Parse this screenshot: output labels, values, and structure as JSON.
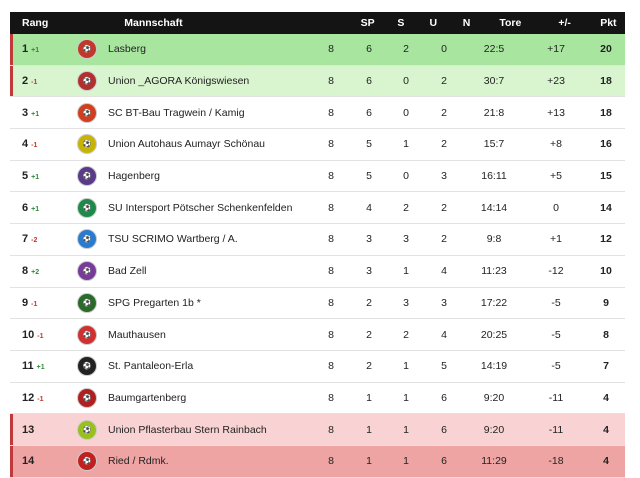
{
  "header": {
    "rang": "Rang",
    "mannschaft": "Mannschaft",
    "sp": "SP",
    "s": "S",
    "u": "U",
    "n": "N",
    "tore": "Tore",
    "diff": "+/-",
    "pkt": "Pkt"
  },
  "rows": [
    {
      "rank": "1",
      "delta": "+1",
      "team": "Lasberg",
      "sp": "8",
      "s": "6",
      "u": "2",
      "n": "0",
      "tore": "22:5",
      "diff": "+17",
      "pkt": "20",
      "logo_color": "#c0392b"
    },
    {
      "rank": "2",
      "delta": "-1",
      "team": "Union _AGORA Königswiesen",
      "sp": "8",
      "s": "6",
      "u": "0",
      "n": "2",
      "tore": "30:7",
      "diff": "+23",
      "pkt": "18",
      "logo_color": "#b03030"
    },
    {
      "rank": "3",
      "delta": "+1",
      "team": "SC BT-Bau Tragwein / Kamig",
      "sp": "8",
      "s": "6",
      "u": "0",
      "n": "2",
      "tore": "21:8",
      "diff": "+13",
      "pkt": "18",
      "logo_color": "#d04020"
    },
    {
      "rank": "4",
      "delta": "-1",
      "team": "Union Autohaus Aumayr Schönau",
      "sp": "8",
      "s": "5",
      "u": "1",
      "n": "2",
      "tore": "15:7",
      "diff": "+8",
      "pkt": "16",
      "logo_color": "#c8b400"
    },
    {
      "rank": "5",
      "delta": "+1",
      "team": "Hagenberg",
      "sp": "8",
      "s": "5",
      "u": "0",
      "n": "3",
      "tore": "16:11",
      "diff": "+5",
      "pkt": "15",
      "logo_color": "#5b3a8a"
    },
    {
      "rank": "6",
      "delta": "+1",
      "team": "SU Intersport Pötscher Schenkenfelden",
      "sp": "8",
      "s": "4",
      "u": "2",
      "n": "2",
      "tore": "14:14",
      "diff": "0",
      "pkt": "14",
      "logo_color": "#1e8a4a"
    },
    {
      "rank": "7",
      "delta": "-2",
      "team": "TSU SCRIMO Wartberg / A.",
      "sp": "8",
      "s": "3",
      "u": "3",
      "n": "2",
      "tore": "9:8",
      "diff": "+1",
      "pkt": "12",
      "logo_color": "#2a7ad0"
    },
    {
      "rank": "8",
      "delta": "+2",
      "team": "Bad Zell",
      "sp": "8",
      "s": "3",
      "u": "1",
      "n": "4",
      "tore": "11:23",
      "diff": "-12",
      "pkt": "10",
      "logo_color": "#7a3a9a"
    },
    {
      "rank": "9",
      "delta": "-1",
      "team": "SPG Pregarten 1b *",
      "sp": "8",
      "s": "2",
      "u": "3",
      "n": "3",
      "tore": "17:22",
      "diff": "-5",
      "pkt": "9",
      "logo_color": "#2a6a2a"
    },
    {
      "rank": "10",
      "delta": "-1",
      "team": "Mauthausen",
      "sp": "8",
      "s": "2",
      "u": "2",
      "n": "4",
      "tore": "20:25",
      "diff": "-5",
      "pkt": "8",
      "logo_color": "#d03030"
    },
    {
      "rank": "11",
      "delta": "+1",
      "team": "St. Pantaleon-Erla",
      "sp": "8",
      "s": "2",
      "u": "1",
      "n": "5",
      "tore": "14:19",
      "diff": "-5",
      "pkt": "7",
      "logo_color": "#222222"
    },
    {
      "rank": "12",
      "delta": "-1",
      "team": "Baumgartenberg",
      "sp": "8",
      "s": "1",
      "u": "1",
      "n": "6",
      "tore": "9:20",
      "diff": "-11",
      "pkt": "4",
      "logo_color": "#b02020"
    },
    {
      "rank": "13",
      "delta": "",
      "team": "Union Pflasterbau Stern Rainbach",
      "sp": "8",
      "s": "1",
      "u": "1",
      "n": "6",
      "tore": "9:20",
      "diff": "-11",
      "pkt": "4",
      "logo_color": "#9ac020"
    },
    {
      "rank": "14",
      "delta": "",
      "team": "Ried / Rdmk.",
      "sp": "8",
      "s": "1",
      "u": "1",
      "n": "6",
      "tore": "11:29",
      "diff": "-18",
      "pkt": "4",
      "logo_color": "#c02020"
    }
  ]
}
